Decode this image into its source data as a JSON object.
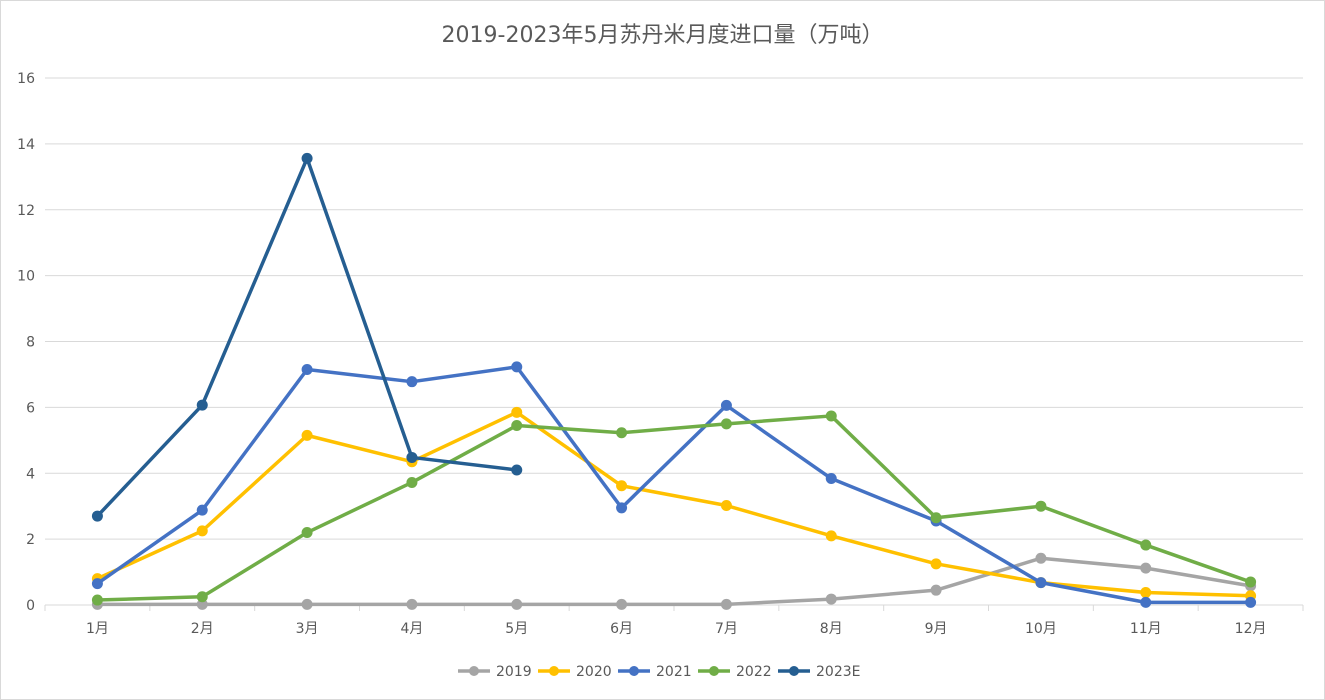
{
  "chart_data": {
    "type": "line",
    "title": "2019-2023年5月苏丹米月度进口量（万吨）",
    "xlabel": "",
    "ylabel": "",
    "categories": [
      "1月",
      "2月",
      "3月",
      "4月",
      "5月",
      "6月",
      "7月",
      "8月",
      "9月",
      "10月",
      "11月",
      "12月"
    ],
    "ylim": [
      0,
      16
    ],
    "yticks": [
      "0",
      "2",
      "4",
      "6",
      "8",
      "10",
      "12",
      "14",
      "16"
    ],
    "grid": true,
    "legend_position": "bottom",
    "series": [
      {
        "name": "2019",
        "color": "#a5a5a5",
        "values": [
          0.02,
          0.02,
          0.02,
          0.02,
          0.02,
          0.02,
          0.02,
          0.18,
          0.45,
          1.42,
          1.12,
          0.58
        ]
      },
      {
        "name": "2020",
        "color": "#ffc000",
        "values": [
          0.8,
          2.25,
          5.15,
          4.35,
          5.85,
          3.62,
          3.02,
          2.1,
          1.25,
          0.68,
          0.38,
          0.28
        ]
      },
      {
        "name": "2021",
        "color": "#4472c4",
        "values": [
          0.65,
          2.88,
          7.15,
          6.78,
          7.23,
          2.95,
          6.06,
          3.84,
          2.55,
          0.68,
          0.08,
          0.08
        ]
      },
      {
        "name": "2022",
        "color": "#70ad47",
        "values": [
          0.15,
          0.25,
          2.2,
          3.72,
          5.45,
          5.23,
          5.5,
          5.74,
          2.65,
          3.0,
          1.82,
          0.7
        ]
      },
      {
        "name": "2023E",
        "color": "#255e91",
        "values": [
          2.7,
          6.07,
          13.56,
          4.48,
          4.1,
          null,
          null,
          null,
          null,
          null,
          null,
          null
        ]
      }
    ]
  }
}
